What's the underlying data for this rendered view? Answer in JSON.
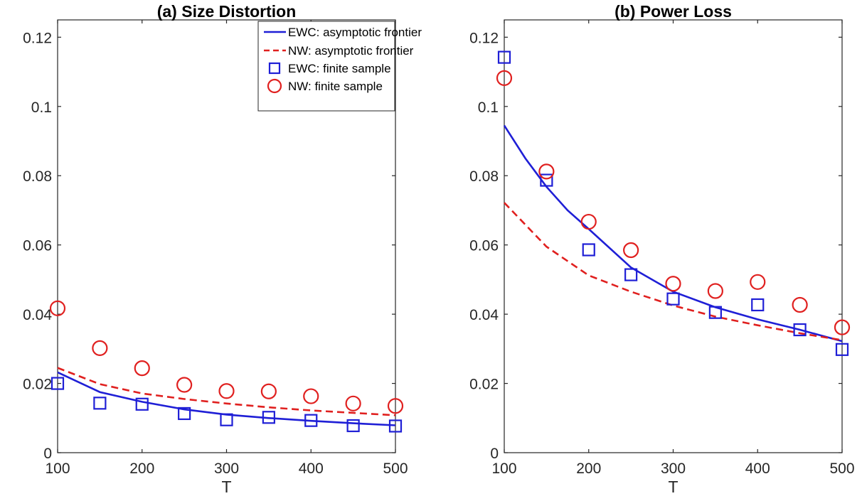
{
  "chart_data": [
    {
      "type": "line",
      "title": "(a) Size Distortion",
      "xlabel": "T",
      "ylabel": "",
      "xlim": [
        100,
        500
      ],
      "ylim": [
        0,
        0.125
      ],
      "xticks": [
        100,
        200,
        300,
        400,
        500
      ],
      "yticks": [
        0,
        0.02,
        0.04,
        0.06,
        0.08,
        0.1,
        0.12
      ],
      "ytick_labels": [
        "0",
        "0.02",
        "0.04",
        "0.06",
        "0.08",
        "0.1",
        "0.12"
      ],
      "grid": false,
      "legend_position": "top-right",
      "legend": [
        "EWC: asymptotic frontier",
        "NW: asymptotic frontier",
        "EWC: finite sample",
        "NW: finite sample"
      ],
      "series": [
        {
          "name": "EWC: asymptotic frontier",
          "kind": "line",
          "style": "solid",
          "color": "#1f1fd6",
          "x": [
            100,
            150,
            200,
            250,
            300,
            350,
            400,
            450,
            500
          ],
          "y": [
            0.0232,
            0.0175,
            0.0147,
            0.0125,
            0.011,
            0.01,
            0.0092,
            0.0085,
            0.0079
          ]
        },
        {
          "name": "NW: asymptotic frontier",
          "kind": "line",
          "style": "dashed",
          "color": "#e0201f",
          "x": [
            100,
            150,
            200,
            250,
            300,
            350,
            400,
            450,
            500
          ],
          "y": [
            0.0245,
            0.0198,
            0.0171,
            0.0155,
            0.0142,
            0.0131,
            0.0122,
            0.0115,
            0.0108
          ]
        },
        {
          "name": "EWC: finite sample",
          "kind": "marker",
          "marker": "square",
          "color": "#1f1fd6",
          "x": [
            100,
            150,
            200,
            250,
            300,
            350,
            400,
            450,
            500
          ],
          "y": [
            0.02,
            0.0143,
            0.014,
            0.0113,
            0.0095,
            0.0102,
            0.0093,
            0.0078,
            0.0077
          ]
        },
        {
          "name": "NW: finite sample",
          "kind": "marker",
          "marker": "circle",
          "color": "#e0201f",
          "x": [
            100,
            150,
            200,
            250,
            300,
            350,
            400,
            450,
            500
          ],
          "y": [
            0.0417,
            0.0302,
            0.0244,
            0.0196,
            0.0178,
            0.0177,
            0.0163,
            0.0142,
            0.0135
          ]
        }
      ]
    },
    {
      "type": "line",
      "title": "(b) Power Loss",
      "xlabel": "T",
      "ylabel": "",
      "xlim": [
        100,
        500
      ],
      "ylim": [
        0,
        0.125
      ],
      "xticks": [
        100,
        200,
        300,
        400,
        500
      ],
      "yticks": [
        0,
        0.02,
        0.04,
        0.06,
        0.08,
        0.1,
        0.12
      ],
      "ytick_labels": [
        "0",
        "0.02",
        "0.04",
        "0.06",
        "0.08",
        "0.1",
        "0.12"
      ],
      "grid": false,
      "series": [
        {
          "kind": "line",
          "style": "solid",
          "color": "#1f1fd6",
          "x": [
            100,
            125,
            150,
            175,
            200,
            250,
            300,
            350,
            400,
            450,
            500
          ],
          "y": [
            0.0945,
            0.085,
            0.0768,
            0.07,
            0.0646,
            0.0535,
            0.0465,
            0.042,
            0.0385,
            0.0355,
            0.0322
          ]
        },
        {
          "kind": "line",
          "style": "dashed",
          "color": "#e0201f",
          "x": [
            100,
            150,
            200,
            250,
            300,
            350,
            400,
            450,
            500
          ],
          "y": [
            0.0722,
            0.0595,
            0.0512,
            0.0465,
            0.0425,
            0.0393,
            0.0368,
            0.0345,
            0.0325
          ]
        },
        {
          "kind": "marker",
          "marker": "square",
          "color": "#1f1fd6",
          "x": [
            100,
            150,
            200,
            250,
            300,
            350,
            400,
            450,
            500
          ],
          "y": [
            0.1142,
            0.0787,
            0.0586,
            0.0514,
            0.0444,
            0.0405,
            0.0427,
            0.0355,
            0.0298
          ]
        },
        {
          "kind": "marker",
          "marker": "circle",
          "color": "#e0201f",
          "x": [
            100,
            150,
            200,
            250,
            300,
            350,
            400,
            450,
            500
          ],
          "y": [
            0.1082,
            0.0812,
            0.0667,
            0.0585,
            0.0488,
            0.0467,
            0.0493,
            0.0427,
            0.0362
          ]
        }
      ]
    }
  ]
}
